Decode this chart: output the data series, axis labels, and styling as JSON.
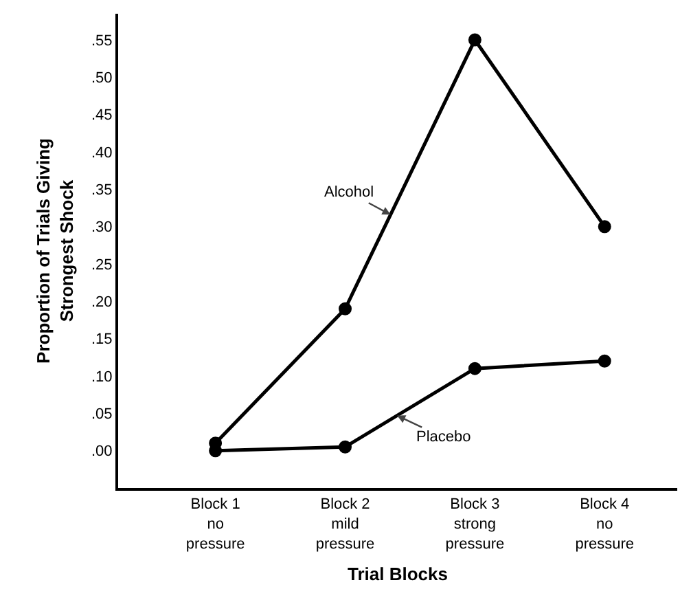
{
  "chart_data": {
    "type": "line",
    "xlabel": "Trial Blocks",
    "ylabel": "Proportion of Trials Giving\nStrongest Shock",
    "categories": [
      "Block 1\nno\npressure",
      "Block 2\nmild\npressure",
      "Block 3\nstrong\npressure",
      "Block 4\nno\npressure"
    ],
    "series": [
      {
        "name": "Alcohol",
        "color": "#000000",
        "values": [
          0.01,
          0.19,
          0.55,
          0.3
        ]
      },
      {
        "name": "Placebo",
        "color": "#000000",
        "values": [
          0.0,
          0.005,
          0.11,
          0.12
        ]
      }
    ],
    "ylim": [
      -0.05,
      0.585
    ],
    "yticks": [
      {
        "value": 0,
        "label": ".00"
      },
      {
        "value": 0.05,
        "label": ".05"
      },
      {
        "value": 0.1,
        "label": ".10"
      },
      {
        "value": 0.15,
        "label": ".15"
      },
      {
        "value": 0.2,
        "label": ".20"
      },
      {
        "value": 0.25,
        "label": ".25"
      },
      {
        "value": 0.3,
        "label": ".30"
      },
      {
        "value": 0.35,
        "label": ".35"
      },
      {
        "value": 0.4,
        "label": ".40"
      },
      {
        "value": 0.45,
        "label": ".45"
      },
      {
        "value": 0.5,
        "label": ".50"
      },
      {
        "value": 0.55,
        "label": ".55"
      }
    ],
    "grid": false,
    "legend": false,
    "marker": "circle",
    "line_style": "solid"
  }
}
